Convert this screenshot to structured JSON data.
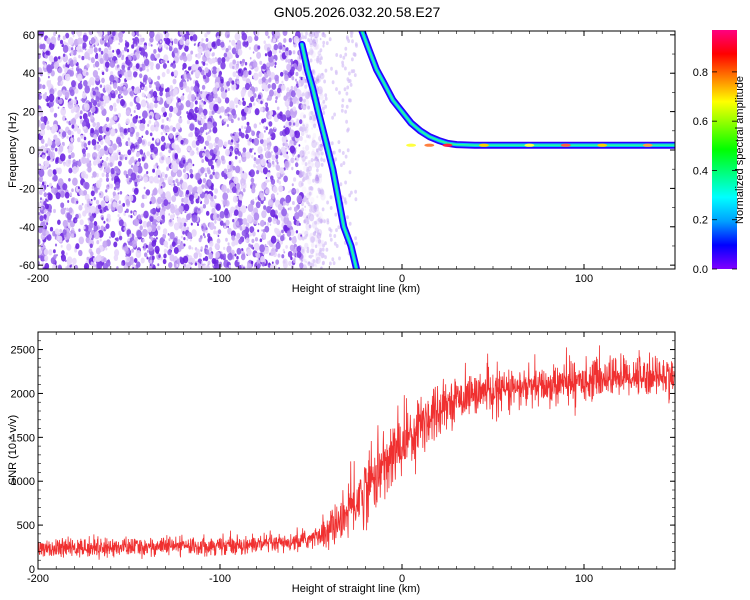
{
  "title": "GN05.2026.032.20.58.E27",
  "chart_data": [
    {
      "type": "heatmap",
      "xlabel": "Height of straight line (km)",
      "ylabel": "Frequency (Hz)",
      "xlim": [
        -200,
        150
      ],
      "ylim": [
        -62,
        62
      ],
      "x_ticks": [
        -200,
        -100,
        0,
        100
      ],
      "y_ticks": [
        -60,
        -40,
        -20,
        0,
        20,
        40,
        60
      ],
      "colorbar": {
        "label": "Normalized spectral amplitude",
        "range": [
          0,
          0.97
        ],
        "ticks": [
          0.0,
          0.2,
          0.4,
          0.6,
          0.8
        ],
        "colormap": [
          "#8000ff",
          "#0000ff",
          "#00a0ff",
          "#00ffff",
          "#00ff80",
          "#00ff00",
          "#80ff00",
          "#ffff00",
          "#ff8000",
          "#ff0000",
          "#ff0080"
        ]
      },
      "features": {
        "noise_region_x": [
          -200,
          -55
        ],
        "noise_color": "#8a3cf0",
        "signal_trace_descending": [
          [
            -55,
            55
          ],
          [
            -52,
            42
          ],
          [
            -49,
            32
          ],
          [
            -46,
            20
          ],
          [
            -42,
            5
          ],
          [
            -38,
            -10
          ],
          [
            -35,
            -25
          ],
          [
            -32,
            -40
          ],
          [
            -28,
            -50
          ],
          [
            -25,
            -62
          ]
        ],
        "signal_trace_ascending": [
          [
            -22,
            62
          ],
          [
            -18,
            52
          ],
          [
            -14,
            42
          ],
          [
            -10,
            35
          ],
          [
            -5,
            26
          ],
          [
            0,
            20
          ],
          [
            5,
            14
          ],
          [
            10,
            10
          ],
          [
            15,
            7
          ],
          [
            20,
            5
          ],
          [
            25,
            3.5
          ],
          [
            30,
            2.8
          ],
          [
            40,
            2.5
          ],
          [
            60,
            2.5
          ],
          [
            100,
            2.5
          ],
          [
            150,
            2.5
          ]
        ]
      }
    },
    {
      "type": "line",
      "xlabel": "Height of straight line (km)",
      "ylabel": "SNR (10 * v/v)",
      "xlim": [
        -200,
        150
      ],
      "ylim": [
        0,
        2700
      ],
      "x_ticks": [
        -200,
        -100,
        0,
        100
      ],
      "y_ticks": [
        0,
        500,
        1000,
        1500,
        2000,
        2500
      ],
      "series_color": "#f03030",
      "trend": [
        [
          -200,
          230
        ],
        [
          -150,
          250
        ],
        [
          -100,
          270
        ],
        [
          -60,
          290
        ],
        [
          -45,
          380
        ],
        [
          -35,
          520
        ],
        [
          -25,
          780
        ],
        [
          -15,
          1050
        ],
        [
          -5,
          1300
        ],
        [
          5,
          1550
        ],
        [
          15,
          1750
        ],
        [
          25,
          1900
        ],
        [
          40,
          2000
        ],
        [
          60,
          2050
        ],
        [
          80,
          2080
        ],
        [
          100,
          2150
        ],
        [
          120,
          2200
        ],
        [
          150,
          2200
        ]
      ]
    }
  ]
}
